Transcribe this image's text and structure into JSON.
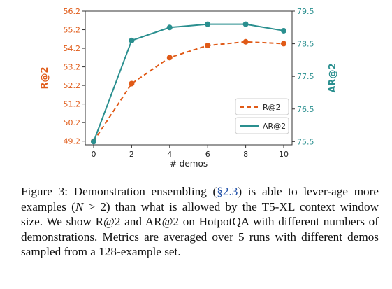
{
  "chart_data": {
    "type": "line",
    "xlabel": "# demos",
    "x": [
      0,
      2,
      4,
      6,
      8,
      10
    ],
    "xticks": [
      "0",
      "2",
      "4",
      "6",
      "8",
      "10"
    ],
    "left_axis": {
      "label": "R@2",
      "ylim": [
        49.0,
        56.2
      ],
      "ticks": [
        "49.2",
        "50.2",
        "51.2",
        "52.2",
        "53.2",
        "54.2",
        "55.2",
        "56.2"
      ],
      "color": "#e05a17"
    },
    "right_axis": {
      "label": "AR@2",
      "ylim": [
        75.5,
        79.5
      ],
      "ticks": [
        "75.5",
        "76.5",
        "77.5",
        "78.5",
        "79.5"
      ],
      "color": "#2a8f8f"
    },
    "series": [
      {
        "name": "R@2",
        "axis": "left",
        "style": "dashed",
        "color": "#e05a17",
        "values": [
          49.2,
          52.3,
          53.7,
          54.35,
          54.55,
          54.45
        ]
      },
      {
        "name": "AR@2",
        "axis": "right",
        "style": "solid",
        "color": "#2a8f8f",
        "values": [
          75.5,
          78.6,
          79.0,
          79.1,
          79.1,
          78.9
        ]
      }
    ],
    "legend": "lower-right",
    "grid": false
  },
  "caption": {
    "prefix": "Figure 3: Demonstration ensembling (",
    "ref": "§2.3",
    "part2": ") is able to lever-age more examples (",
    "var": "N",
    "part3": " > 2) than what is allowed by the T5-XL  context window size. We show R@2 and AR@2 on HotpotQA with different numbers of demonstrations. Metrics are averaged over 5 runs with different demos sampled from a 128-example set."
  }
}
